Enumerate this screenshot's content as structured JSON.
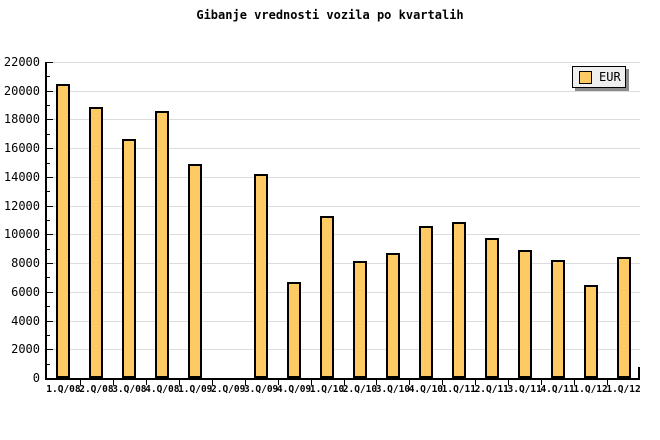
{
  "title": "Gibanje vrednosti vozila po kvartalih",
  "legend": {
    "label": "EUR"
  },
  "colors": {
    "bar_fill": "#FDCA63",
    "bar_border": "#000000",
    "grid": "#DCDCDC",
    "axis": "#000000",
    "legend_bg": "#EFEFEF",
    "legend_shadow": "#8C8C8C",
    "background": "#FFFFFF"
  },
  "chart_data": {
    "type": "bar",
    "title": "Gibanje vrednosti vozila po kvartalih",
    "categories": [
      "1.Q/08",
      "2.Q/08",
      "3.Q/08",
      "4.Q/08",
      "1.Q/09",
      "2.Q/09",
      "3.Q/09",
      "4.Q/09",
      "1.Q/10",
      "2.Q/10",
      "3.Q/10",
      "4.Q/10",
      "1.Q/11",
      "2.Q/11",
      "3.Q/11",
      "4.Q/11",
      "1.Q/12",
      "1.Q/12"
    ],
    "series": [
      {
        "name": "EUR",
        "values": [
          20500,
          18850,
          16650,
          18600,
          14900,
          null,
          14200,
          6700,
          11250,
          8150,
          8700,
          10600,
          10850,
          9750,
          8900,
          8200,
          6500,
          8450
        ]
      }
    ],
    "xlabel": "",
    "ylabel": "",
    "ylim": [
      0,
      22000
    ],
    "ytick_step": 2000,
    "ytick_minor_step": 1000,
    "grid": true,
    "legend_position": "top-right",
    "bar_color": "#FDCA63"
  }
}
